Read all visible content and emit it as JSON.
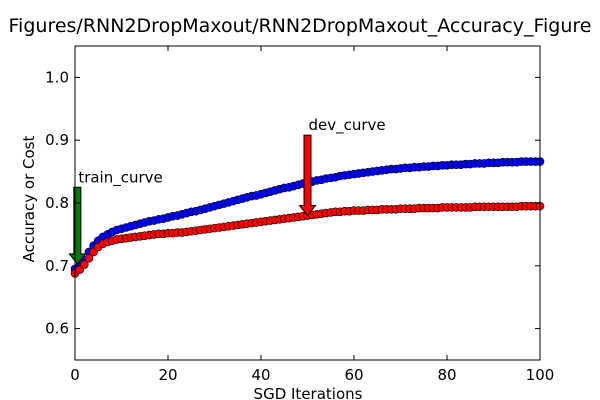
{
  "chart_data": {
    "type": "scatter",
    "title": "Figures/RNN2DropMaxout/RNN2DropMaxout_Accuracy_Figure",
    "xlabel": "SGD Iterations",
    "ylabel": "Accuracy or Cost",
    "xlim": [
      0,
      100
    ],
    "ylim": [
      0.55,
      1.05
    ],
    "x_ticks": [
      "0",
      "20",
      "40",
      "60",
      "80",
      "100"
    ],
    "y_ticks": [
      "0.6",
      "0.7",
      "0.8",
      "0.9",
      "1.0"
    ],
    "grid": false,
    "legend": "none",
    "series": [
      {
        "color": "#0000ff",
        "x": [
          0,
          1,
          2,
          3,
          4,
          5,
          6,
          7,
          8,
          9,
          10,
          11,
          12,
          13,
          14,
          15,
          16,
          17,
          18,
          19,
          20,
          21,
          22,
          23,
          24,
          25,
          26,
          27,
          28,
          29,
          30,
          31,
          32,
          33,
          34,
          35,
          36,
          37,
          38,
          39,
          40,
          41,
          42,
          43,
          44,
          45,
          46,
          47,
          48,
          49,
          50,
          51,
          52,
          53,
          54,
          55,
          56,
          57,
          58,
          59,
          60,
          61,
          62,
          63,
          64,
          65,
          66,
          67,
          68,
          69,
          70,
          71,
          72,
          73,
          74,
          75,
          76,
          77,
          78,
          79,
          80,
          81,
          82,
          83,
          84,
          85,
          86,
          87,
          88,
          89,
          90,
          91,
          92,
          93,
          94,
          95,
          96,
          97,
          98,
          99,
          100
        ],
        "y": [
          0.695,
          0.7,
          0.71,
          0.722,
          0.732,
          0.74,
          0.746,
          0.75,
          0.754,
          0.757,
          0.759,
          0.761,
          0.763,
          0.765,
          0.767,
          0.769,
          0.771,
          0.772,
          0.774,
          0.775,
          0.777,
          0.779,
          0.78,
          0.782,
          0.784,
          0.786,
          0.787,
          0.789,
          0.791,
          0.793,
          0.795,
          0.797,
          0.799,
          0.801,
          0.803,
          0.805,
          0.807,
          0.809,
          0.811,
          0.812,
          0.814,
          0.816,
          0.818,
          0.82,
          0.822,
          0.824,
          0.825,
          0.827,
          0.829,
          0.831,
          0.832,
          0.834,
          0.836,
          0.837,
          0.839,
          0.84,
          0.841,
          0.843,
          0.844,
          0.845,
          0.846,
          0.847,
          0.848,
          0.849,
          0.85,
          0.851,
          0.852,
          0.853,
          0.854,
          0.854,
          0.855,
          0.856,
          0.856,
          0.857,
          0.857,
          0.858,
          0.858,
          0.859,
          0.859,
          0.86,
          0.86,
          0.861,
          0.861,
          0.861,
          0.862,
          0.862,
          0.863,
          0.863,
          0.863,
          0.864,
          0.864,
          0.864,
          0.865,
          0.865,
          0.865,
          0.865,
          0.866,
          0.866,
          0.866,
          0.866,
          0.866
        ]
      },
      {
        "color": "#ff0000",
        "x": [
          0,
          1,
          2,
          3,
          4,
          5,
          6,
          7,
          8,
          9,
          10,
          11,
          12,
          13,
          14,
          15,
          16,
          17,
          18,
          19,
          20,
          21,
          22,
          23,
          24,
          25,
          26,
          27,
          28,
          29,
          30,
          31,
          32,
          33,
          34,
          35,
          36,
          37,
          38,
          39,
          40,
          41,
          42,
          43,
          44,
          45,
          46,
          47,
          48,
          49,
          50,
          51,
          52,
          53,
          54,
          55,
          56,
          57,
          58,
          59,
          60,
          61,
          62,
          63,
          64,
          65,
          66,
          67,
          68,
          69,
          70,
          71,
          72,
          73,
          74,
          75,
          76,
          77,
          78,
          79,
          80,
          81,
          82,
          83,
          84,
          85,
          86,
          87,
          88,
          89,
          90,
          91,
          92,
          93,
          94,
          95,
          96,
          97,
          98,
          99,
          100
        ],
        "y": [
          0.688,
          0.694,
          0.702,
          0.712,
          0.722,
          0.73,
          0.735,
          0.738,
          0.74,
          0.742,
          0.743,
          0.744,
          0.745,
          0.746,
          0.747,
          0.748,
          0.749,
          0.75,
          0.751,
          0.751,
          0.752,
          0.752,
          0.753,
          0.753,
          0.754,
          0.755,
          0.756,
          0.757,
          0.758,
          0.759,
          0.76,
          0.761,
          0.762,
          0.763,
          0.764,
          0.765,
          0.766,
          0.767,
          0.768,
          0.769,
          0.77,
          0.771,
          0.772,
          0.773,
          0.774,
          0.775,
          0.776,
          0.777,
          0.778,
          0.779,
          0.78,
          0.781,
          0.782,
          0.783,
          0.784,
          0.785,
          0.786,
          0.786,
          0.787,
          0.787,
          0.788,
          0.788,
          0.788,
          0.789,
          0.789,
          0.789,
          0.79,
          0.79,
          0.79,
          0.79,
          0.791,
          0.791,
          0.791,
          0.791,
          0.792,
          0.792,
          0.792,
          0.792,
          0.792,
          0.793,
          0.793,
          0.793,
          0.793,
          0.793,
          0.793,
          0.793,
          0.794,
          0.794,
          0.794,
          0.794,
          0.794,
          0.794,
          0.794,
          0.794,
          0.794,
          0.794,
          0.795,
          0.795,
          0.795,
          0.795,
          0.795
        ]
      }
    ],
    "annotations": [
      {
        "text": "train_curve",
        "arrow_color": "#008000",
        "x": 0.5,
        "y": 0.703,
        "arrow_from_y": 0.825
      },
      {
        "text": "dev_curve",
        "arrow_color": "#ff0000",
        "x": 50,
        "y": 0.78,
        "arrow_from_y": 0.908
      }
    ]
  }
}
